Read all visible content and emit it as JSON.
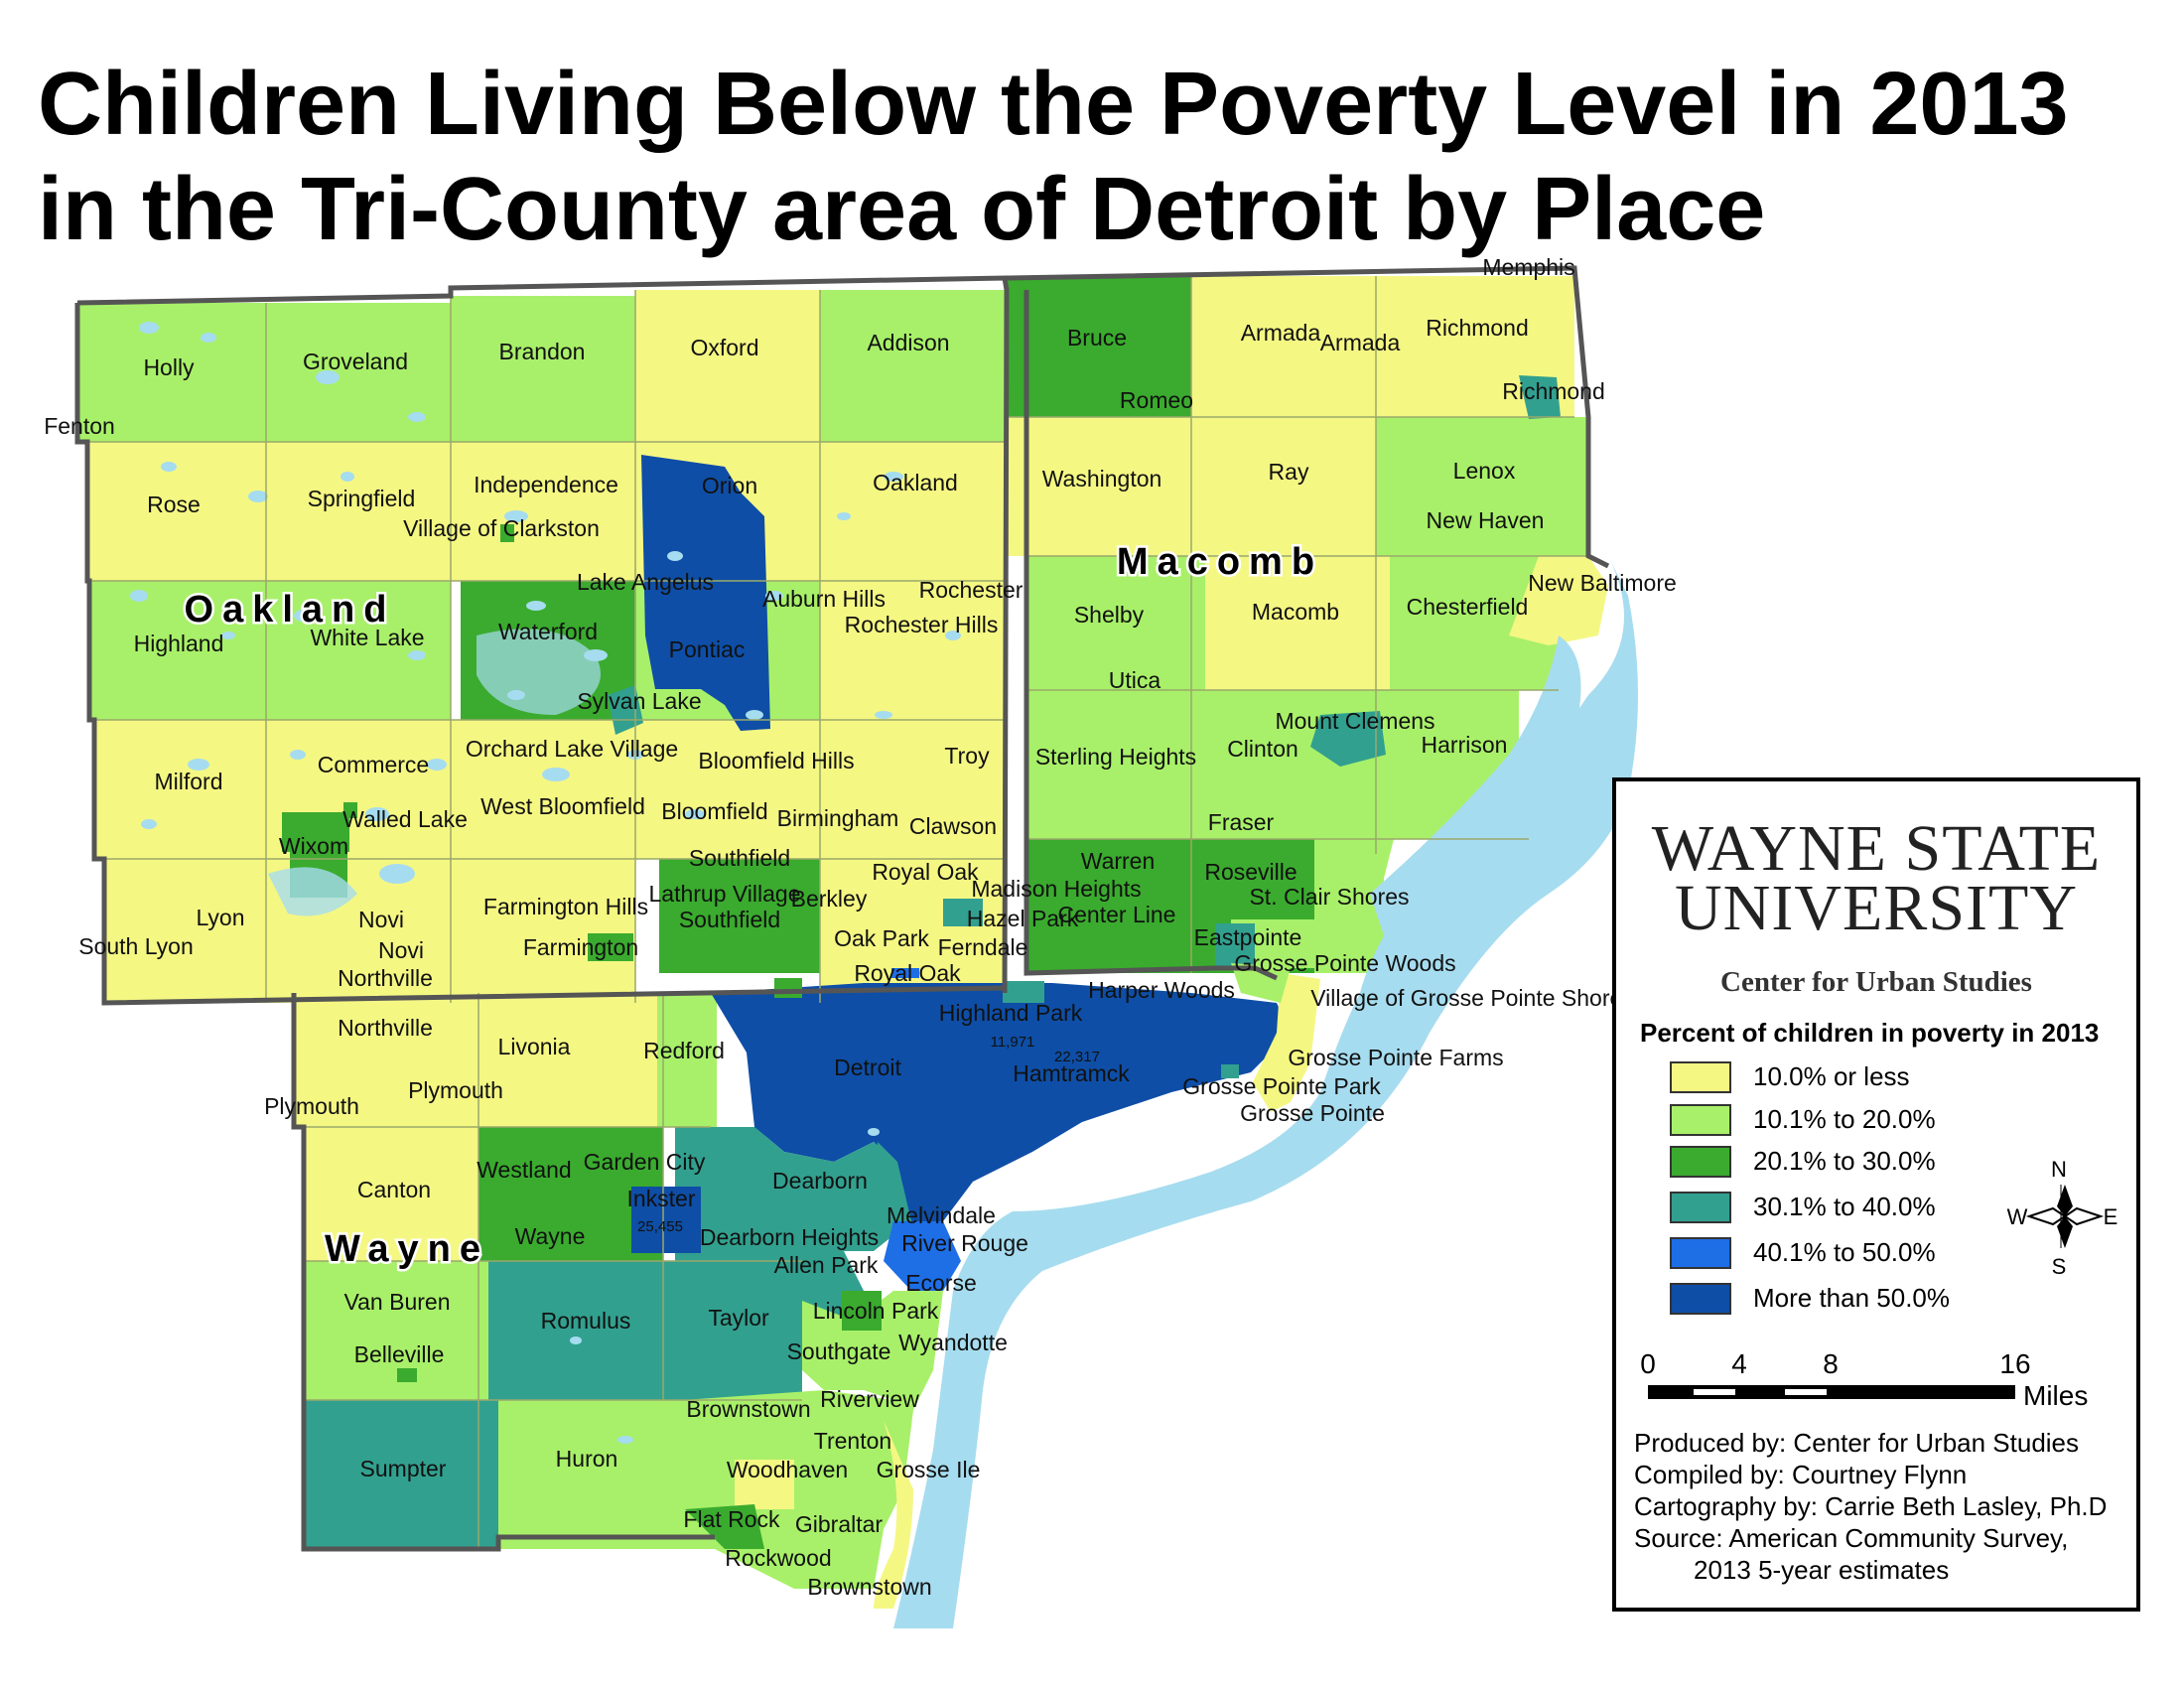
{
  "title": {
    "line1": "Children Living Below the Poverty Level in 2013",
    "line2": "in the Tri-County area of Detroit by Place"
  },
  "colors": {
    "water": "#a6dcef",
    "boundary": "#555555"
  },
  "counties": [
    "Oakland",
    "Macomb",
    "Wayne"
  ],
  "places": [
    "Memphis",
    "Holly",
    "Groveland",
    "Brandon",
    "Oxford",
    "Addison",
    "Bruce",
    "Armada",
    "Armada",
    "Richmond",
    "Fenton",
    "Romeo",
    "Richmond",
    "Rose",
    "Springfield",
    "Independence",
    "Orion",
    "Oakland",
    "Washington",
    "Ray",
    "Lenox",
    "Village of Clarkston",
    "New Haven",
    "Lake Angelus",
    "Auburn Hills",
    "Rochester",
    "Rochester Hills",
    "Shelby",
    "Macomb",
    "Chesterfield",
    "New Baltimore",
    "Highland",
    "White Lake",
    "Waterford",
    "Pontiac",
    "Utica",
    "Sylvan Lake",
    "Mount Clemens",
    "Commerce",
    "Orchard Lake Village",
    "Bloomfield Hills",
    "Troy",
    "Sterling Heights",
    "Clinton",
    "Harrison",
    "Milford",
    "West Bloomfield",
    "Bloomfield",
    "Birmingham",
    "Clawson",
    "Walled Lake",
    "Wixom",
    "Fraser",
    "Southfield",
    "Warren",
    "Roseville",
    "Royal Oak",
    "Madison Heights",
    "Lyon",
    "Novi",
    "Farmington Hills",
    "Lathrup Village",
    "Berkley",
    "Southfield",
    "Hazel Park",
    "Center Line",
    "St. Clair Shores",
    "South Lyon",
    "Novi",
    "Farmington",
    "Oak Park",
    "Ferndale",
    "Eastpointe",
    "Grosse Pointe Woods",
    "Northville",
    "Royal Oak",
    "Harper Woods",
    "Village of Grosse Pointe Shores",
    "Northville",
    "Highland Park",
    "Livonia",
    "Redford",
    "Detroit",
    "Hamtramck",
    "Grosse Pointe Farms",
    "Grosse Pointe Park",
    "Plymouth",
    "Plymouth",
    "Grosse Pointe",
    "Canton",
    "Westland",
    "Garden City",
    "Dearborn",
    "Inkster",
    "Wayne",
    "Melvindale",
    "Dearborn Heights",
    "River Rouge",
    "Allen Park",
    "Ecorse",
    "Van Buren",
    "Romulus",
    "Taylor",
    "Lincoln Park",
    "Belleville",
    "Southgate",
    "Wyandotte",
    "Brownstown",
    "Riverview",
    "Trenton",
    "Sumpter",
    "Huron",
    "Woodhaven",
    "Grosse Ile",
    "Flat Rock",
    "Gibraltar",
    "Rockwood",
    "Brownstown"
  ],
  "population_labels": [
    "11,971",
    "22,317",
    "25,455"
  ],
  "legend": {
    "university_line1": "WAYNE STATE",
    "university_line2": "UNIVERSITY",
    "center": "Center for Urban Studies",
    "title": "Percent of children in poverty in 2013",
    "classes": [
      {
        "label": "10.0% or less",
        "color": "#f5f783"
      },
      {
        "label": "10.1% to 20.0%",
        "color": "#a8f069"
      },
      {
        "label": "20.1% to 30.0%",
        "color": "#3aab2e"
      },
      {
        "label": "30.1% to 40.0%",
        "color": "#32a08f"
      },
      {
        "label": "40.1% to 50.0%",
        "color": "#1e6ee6"
      },
      {
        "label": "More than 50.0%",
        "color": "#0e4ea6"
      }
    ],
    "compass": {
      "n": "N",
      "s": "S",
      "e": "E",
      "w": "W"
    },
    "scale": {
      "ticks": [
        "0",
        "4",
        "8",
        "16"
      ],
      "unit": "Miles"
    },
    "credits": {
      "produced": "Produced by: Center for Urban Studies",
      "compiled": "Compiled by: Courtney Flynn",
      "cartography": "Cartography by: Carrie Beth Lasley, Ph.D",
      "source": "Source: American Community Survey,",
      "source_detail": "2013 5-year estimates"
    }
  }
}
